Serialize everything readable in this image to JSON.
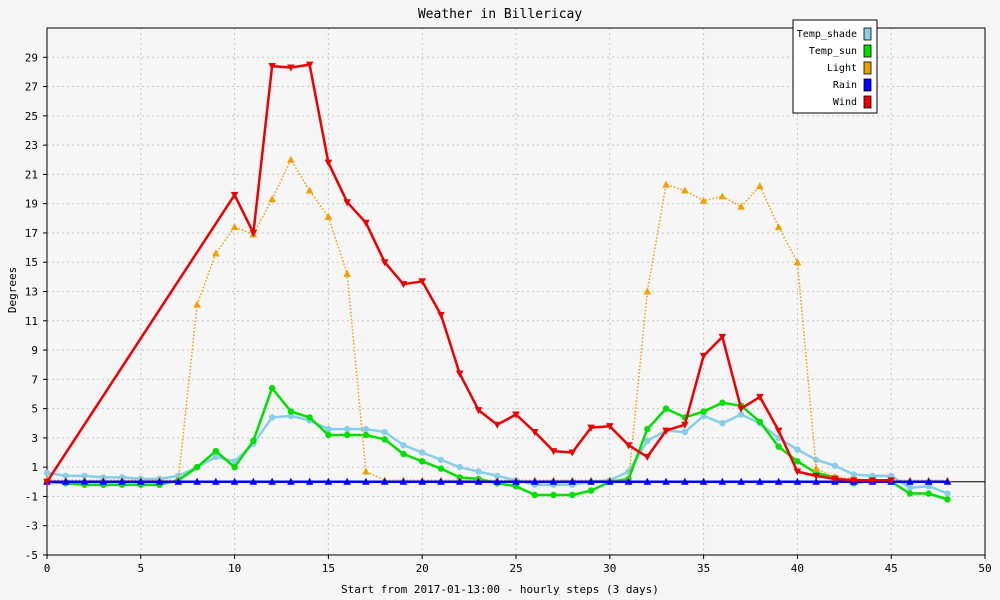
{
  "chart_data": {
    "type": "line",
    "title": "Weather in Billericay",
    "xlabel": "Start from 2017-01-13:00 - hourly steps (3 days)",
    "ylabel": "Degrees",
    "xlim": [
      0,
      50
    ],
    "ylim": [
      -5,
      31
    ],
    "x_ticks": [
      0,
      5,
      10,
      15,
      20,
      25,
      30,
      35,
      40,
      45,
      50
    ],
    "y_ticks": [
      -5,
      -3,
      -1,
      1,
      3,
      5,
      7,
      9,
      11,
      13,
      15,
      17,
      19,
      21,
      23,
      25,
      27,
      29
    ],
    "grid": true,
    "legend_position": "top-right",
    "series": [
      {
        "name": "Temp_shade",
        "color": "#87ceeb",
        "style": "solid",
        "marker": "circle",
        "x": [
          0,
          1,
          2,
          3,
          4,
          5,
          6,
          7,
          8,
          9,
          10,
          11,
          12,
          13,
          14,
          15,
          16,
          17,
          18,
          19,
          20,
          21,
          22,
          23,
          24,
          25,
          26,
          27,
          28,
          29,
          30,
          31,
          32,
          33,
          34,
          35,
          36,
          37,
          38,
          39,
          40,
          41,
          42,
          43,
          44,
          45,
          46,
          47,
          48
        ],
        "values": [
          0.6,
          0.4,
          0.4,
          0.3,
          0.3,
          0.2,
          0.2,
          0.4,
          1.0,
          1.7,
          1.4,
          2.6,
          4.4,
          4.5,
          4.2,
          3.6,
          3.6,
          3.6,
          3.4,
          2.5,
          2.0,
          1.5,
          1.0,
          0.7,
          0.4,
          0.1,
          -0.2,
          -0.2,
          -0.2,
          0.0,
          0.1,
          0.7,
          2.8,
          3.5,
          3.4,
          4.5,
          4.0,
          4.6,
          4.0,
          3.0,
          2.2,
          1.5,
          1.1,
          0.5,
          0.4,
          0.4,
          -0.4,
          -0.3,
          -0.8
        ]
      },
      {
        "name": "Temp_sun",
        "color": "#00e000",
        "style": "solid",
        "marker": "circle",
        "x": [
          0,
          1,
          2,
          3,
          4,
          5,
          6,
          7,
          8,
          9,
          10,
          11,
          12,
          13,
          14,
          15,
          16,
          17,
          18,
          19,
          20,
          21,
          22,
          23,
          24,
          25,
          26,
          27,
          28,
          29,
          30,
          31,
          32,
          33,
          34,
          35,
          36,
          37,
          38,
          39,
          40,
          41,
          42,
          43,
          44,
          45,
          46,
          47,
          48
        ],
        "values": [
          0.0,
          -0.1,
          -0.2,
          -0.2,
          -0.2,
          -0.2,
          -0.2,
          0.1,
          1.0,
          2.1,
          1.0,
          2.8,
          6.4,
          4.8,
          4.4,
          3.2,
          3.2,
          3.2,
          2.9,
          1.9,
          1.4,
          0.9,
          0.3,
          0.2,
          -0.1,
          -0.3,
          -0.9,
          -0.9,
          -0.9,
          -0.6,
          0.0,
          0.2,
          3.6,
          5.0,
          4.4,
          4.8,
          5.4,
          5.2,
          4.1,
          2.4,
          1.4,
          0.6,
          0.3,
          -0.1,
          0.1,
          0.0,
          -0.8,
          -0.8,
          -1.2
        ]
      },
      {
        "name": "Light",
        "color": "#f0a000",
        "style": "dotted",
        "marker": "triangle-up",
        "x": [
          0,
          1,
          2,
          3,
          4,
          5,
          6,
          7,
          8,
          9,
          10,
          11,
          12,
          13,
          14,
          15,
          16,
          17,
          18,
          19,
          20,
          21,
          22,
          23,
          24,
          25,
          26,
          27,
          28,
          29,
          30,
          31,
          32,
          33,
          34,
          35,
          36,
          37,
          38,
          39,
          40,
          41,
          42,
          43,
          44,
          45,
          46,
          47,
          48
        ],
        "values": [
          0.1,
          0.1,
          0.1,
          0.1,
          0.1,
          0.1,
          0.1,
          0.1,
          12.1,
          15.6,
          17.4,
          16.9,
          19.3,
          22.0,
          19.9,
          18.1,
          14.2,
          0.7,
          0.1,
          0.1,
          0.1,
          0.1,
          0.1,
          0.1,
          0.1,
          0.1,
          0.1,
          0.1,
          0.1,
          0.1,
          0.1,
          0.1,
          13.0,
          20.3,
          19.9,
          19.2,
          19.5,
          18.8,
          20.2,
          17.4,
          15.0,
          0.9,
          0.3,
          0.2,
          0.1,
          0.1,
          0.1,
          0.1,
          0.1
        ]
      },
      {
        "name": "Rain",
        "color": "#0000ff",
        "style": "solid",
        "marker": "triangle-up",
        "x": [
          0,
          1,
          2,
          3,
          4,
          5,
          6,
          7,
          8,
          9,
          10,
          11,
          12,
          13,
          14,
          15,
          16,
          17,
          18,
          19,
          20,
          21,
          22,
          23,
          24,
          25,
          26,
          27,
          28,
          29,
          30,
          31,
          32,
          33,
          34,
          35,
          36,
          37,
          38,
          39,
          40,
          41,
          42,
          43,
          44,
          45,
          46,
          47,
          48
        ],
        "values": [
          0,
          0,
          0,
          0,
          0,
          0,
          0,
          0,
          0,
          0,
          0,
          0,
          0,
          0,
          0,
          0,
          0,
          0,
          0,
          0,
          0,
          0,
          0,
          0,
          0,
          0,
          0,
          0,
          0,
          0,
          0,
          0,
          0,
          0,
          0,
          0,
          0,
          0,
          0,
          0,
          0,
          0,
          0,
          0,
          0,
          0,
          0,
          0,
          0
        ]
      },
      {
        "name": "Wind",
        "color": "#ee0000",
        "style": "solid",
        "marker": "triangle-down",
        "x": [
          0,
          10,
          11,
          12,
          13,
          14,
          15,
          16,
          17,
          18,
          19,
          20,
          21,
          22,
          23,
          24,
          25,
          26,
          27,
          28,
          29,
          30,
          31,
          32,
          33,
          34,
          35,
          36,
          37,
          38,
          39,
          40,
          41,
          42,
          43,
          44,
          45
        ],
        "values": [
          0.0,
          19.6,
          17.0,
          28.4,
          28.3,
          28.5,
          21.8,
          19.1,
          17.7,
          15.0,
          13.5,
          13.7,
          11.4,
          7.4,
          4.9,
          3.9,
          4.6,
          3.4,
          2.1,
          2.0,
          3.7,
          3.8,
          2.5,
          1.7,
          3.5,
          3.9,
          8.6,
          9.9,
          5.0,
          5.8,
          3.5,
          0.7,
          0.4,
          0.2,
          0.1,
          0.1,
          0.1
        ]
      }
    ]
  }
}
